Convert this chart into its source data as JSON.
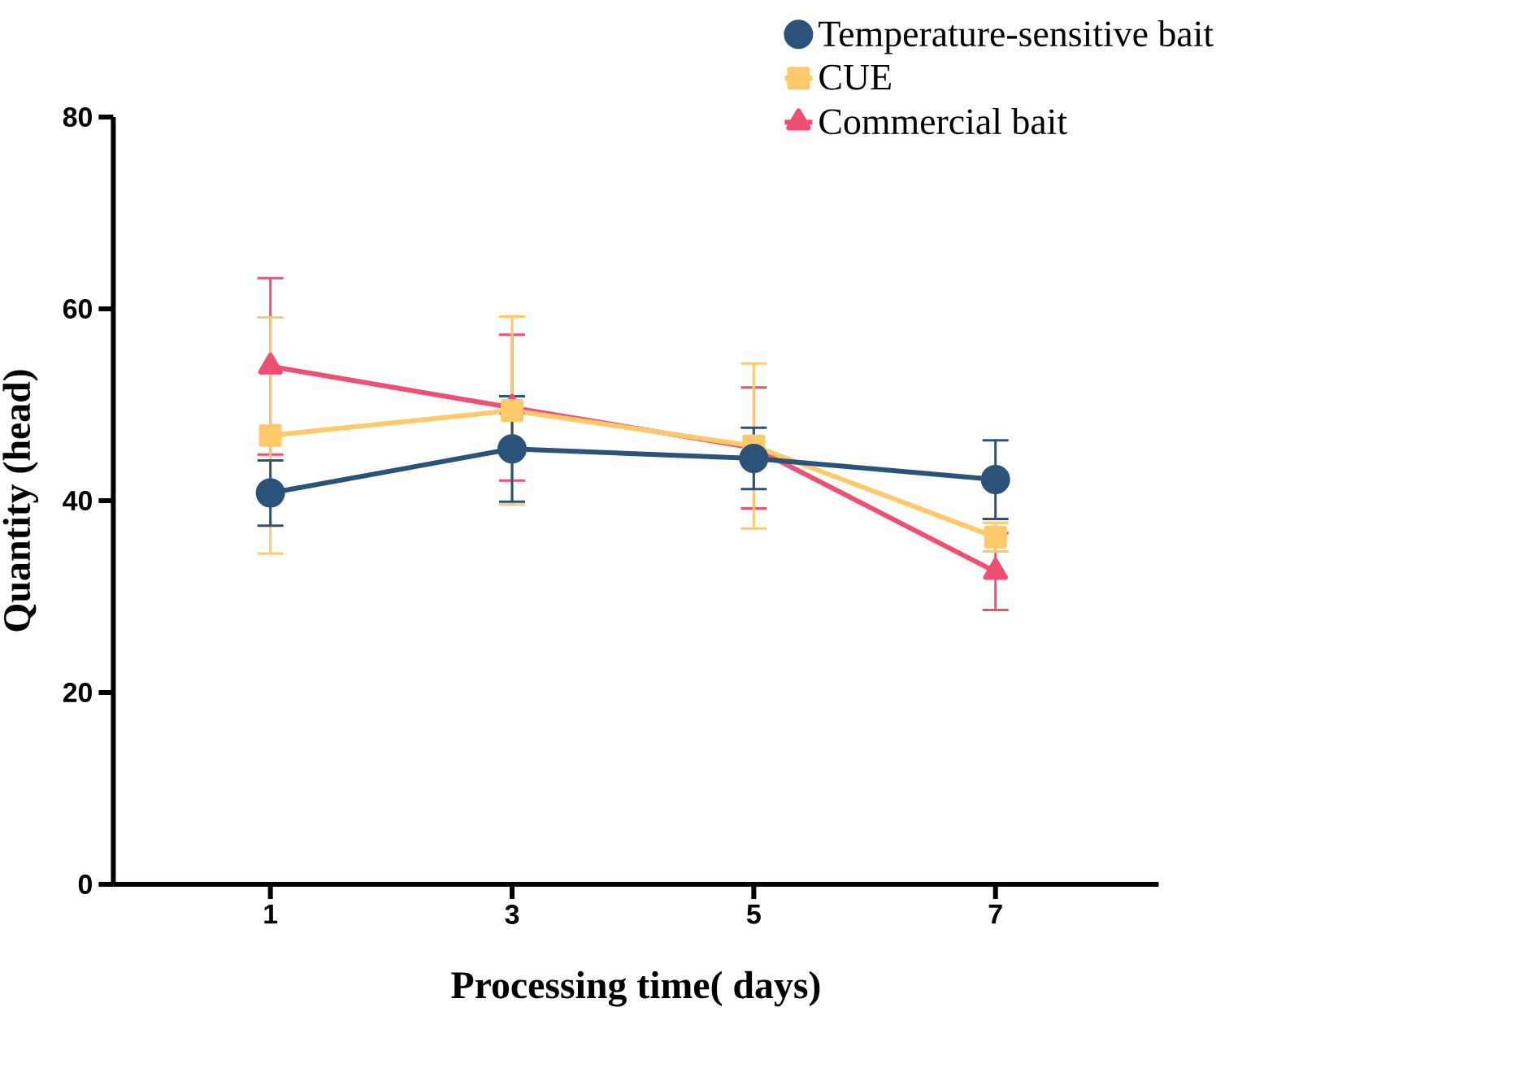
{
  "chart_data": {
    "type": "line",
    "xlabel": "Processing time( days)",
    "ylabel": "Quantity (head)",
    "x": [
      1,
      3,
      5,
      7
    ],
    "xlim": [
      -0.3,
      8.35
    ],
    "xticks": [
      1,
      3,
      5,
      7
    ],
    "ylim": [
      0,
      80
    ],
    "yticks": [
      0,
      20,
      40,
      60,
      80
    ],
    "grid": false,
    "legend": "top right",
    "series": [
      {
        "name": "Temperature-sensitive bait",
        "color": "#2b5279",
        "marker": "circle",
        "values": [
          40.8,
          45.4,
          44.4,
          42.2
        ],
        "errors": [
          3.4,
          5.5,
          3.2,
          4.1
        ]
      },
      {
        "name": "CUE",
        "color": "#fdc96a",
        "marker": "square",
        "values": [
          46.8,
          49.4,
          45.7,
          36.2
        ],
        "errors": [
          12.3,
          9.8,
          8.6,
          1.5
        ]
      },
      {
        "name": "Commercial bait",
        "color": "#ee4f73",
        "marker": "triangle",
        "values": [
          54.0,
          49.7,
          45.5,
          32.6
        ],
        "errors": [
          9.2,
          7.6,
          6.3,
          4.0
        ]
      }
    ]
  }
}
